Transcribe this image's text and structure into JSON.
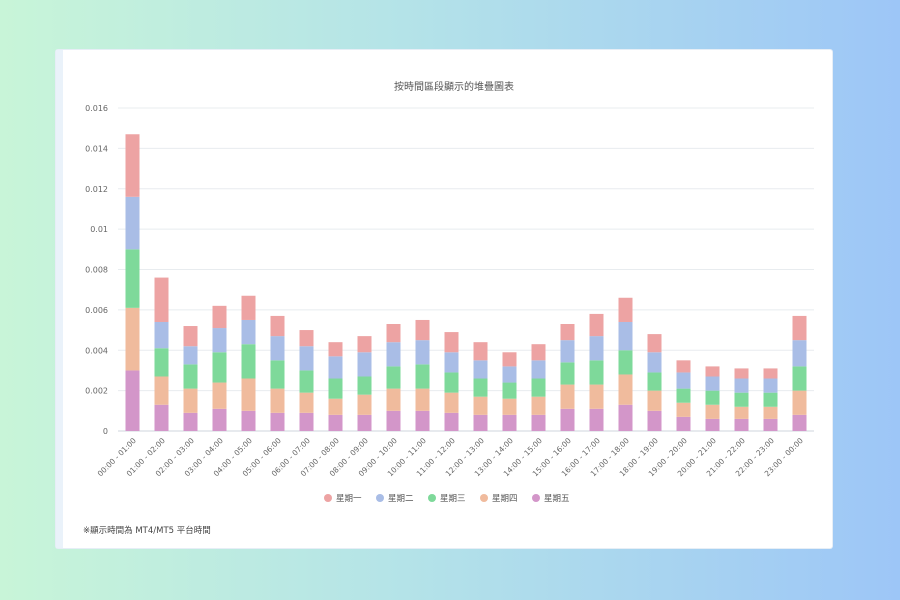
{
  "note": "※顯示時間為 MT4/MT5 平台時間",
  "chart_data": {
    "type": "bar",
    "stacked": true,
    "title": "按時間區段顯示的堆疊圖表",
    "xlabel": "",
    "ylabel": "",
    "ylim": [
      0,
      0.016
    ],
    "yticks": [
      "0",
      "0.002",
      "0.004",
      "0.006",
      "0.008",
      "0.01",
      "0.012",
      "0.014",
      "0.016"
    ],
    "grid": true,
    "legend_position": "bottom",
    "categories": [
      "00:00 - 01:00",
      "01:00 - 02:00",
      "02:00 - 03:00",
      "03:00 - 04:00",
      "04:00 - 05:00",
      "05:00 - 06:00",
      "06:00 - 07:00",
      "07:00 - 08:00",
      "08:00 - 09:00",
      "09:00 - 10:00",
      "10:00 - 11:00",
      "11:00 - 12:00",
      "12:00 - 13:00",
      "13:00 - 14:00",
      "14:00 - 15:00",
      "15:00 - 16:00",
      "16:00 - 17:00",
      "17:00 - 18:00",
      "18:00 - 19:00",
      "19:00 - 20:00",
      "20:00 - 21:00",
      "21:00 - 22:00",
      "22:00 - 23:00",
      "23:00 - 00:00"
    ],
    "series": [
      {
        "name": "星期五",
        "color": "#d396c9",
        "values": [
          0.003,
          0.0013,
          0.0009,
          0.0011,
          0.001,
          0.0009,
          0.0009,
          0.0008,
          0.0008,
          0.001,
          0.001,
          0.0009,
          0.0008,
          0.0008,
          0.0008,
          0.0011,
          0.0011,
          0.0013,
          0.001,
          0.0007,
          0.0006,
          0.0006,
          0.0006,
          0.0008
        ]
      },
      {
        "name": "星期四",
        "color": "#f0bb9d",
        "values": [
          0.0031,
          0.0014,
          0.0012,
          0.0013,
          0.0016,
          0.0012,
          0.001,
          0.0008,
          0.001,
          0.0011,
          0.0011,
          0.001,
          0.0009,
          0.0008,
          0.0009,
          0.0012,
          0.0012,
          0.0015,
          0.001,
          0.0007,
          0.0007,
          0.0006,
          0.0006,
          0.0012
        ]
      },
      {
        "name": "星期三",
        "color": "#7ed99a",
        "values": [
          0.0029,
          0.0014,
          0.0012,
          0.0015,
          0.0017,
          0.0014,
          0.0011,
          0.001,
          0.0009,
          0.0011,
          0.0012,
          0.001,
          0.0009,
          0.0008,
          0.0009,
          0.0011,
          0.0012,
          0.0012,
          0.0009,
          0.0007,
          0.0007,
          0.0007,
          0.0007,
          0.0012
        ]
      },
      {
        "name": "星期二",
        "color": "#a9bde6",
        "values": [
          0.0026,
          0.0013,
          0.0009,
          0.0012,
          0.0012,
          0.0012,
          0.0012,
          0.0011,
          0.0012,
          0.0012,
          0.0012,
          0.001,
          0.0009,
          0.0008,
          0.0009,
          0.0011,
          0.0012,
          0.0014,
          0.001,
          0.0008,
          0.0007,
          0.0007,
          0.0007,
          0.0013
        ]
      },
      {
        "name": "星期一",
        "color": "#eda3a3",
        "values": [
          0.0031,
          0.0022,
          0.001,
          0.0011,
          0.0012,
          0.001,
          0.0008,
          0.0007,
          0.0008,
          0.0009,
          0.001,
          0.001,
          0.0009,
          0.0007,
          0.0008,
          0.0008,
          0.0011,
          0.0012,
          0.0009,
          0.0006,
          0.0005,
          0.0005,
          0.0005,
          0.0012
        ]
      }
    ],
    "legend_order": [
      "星期一",
      "星期二",
      "星期三",
      "星期四",
      "星期五"
    ]
  }
}
